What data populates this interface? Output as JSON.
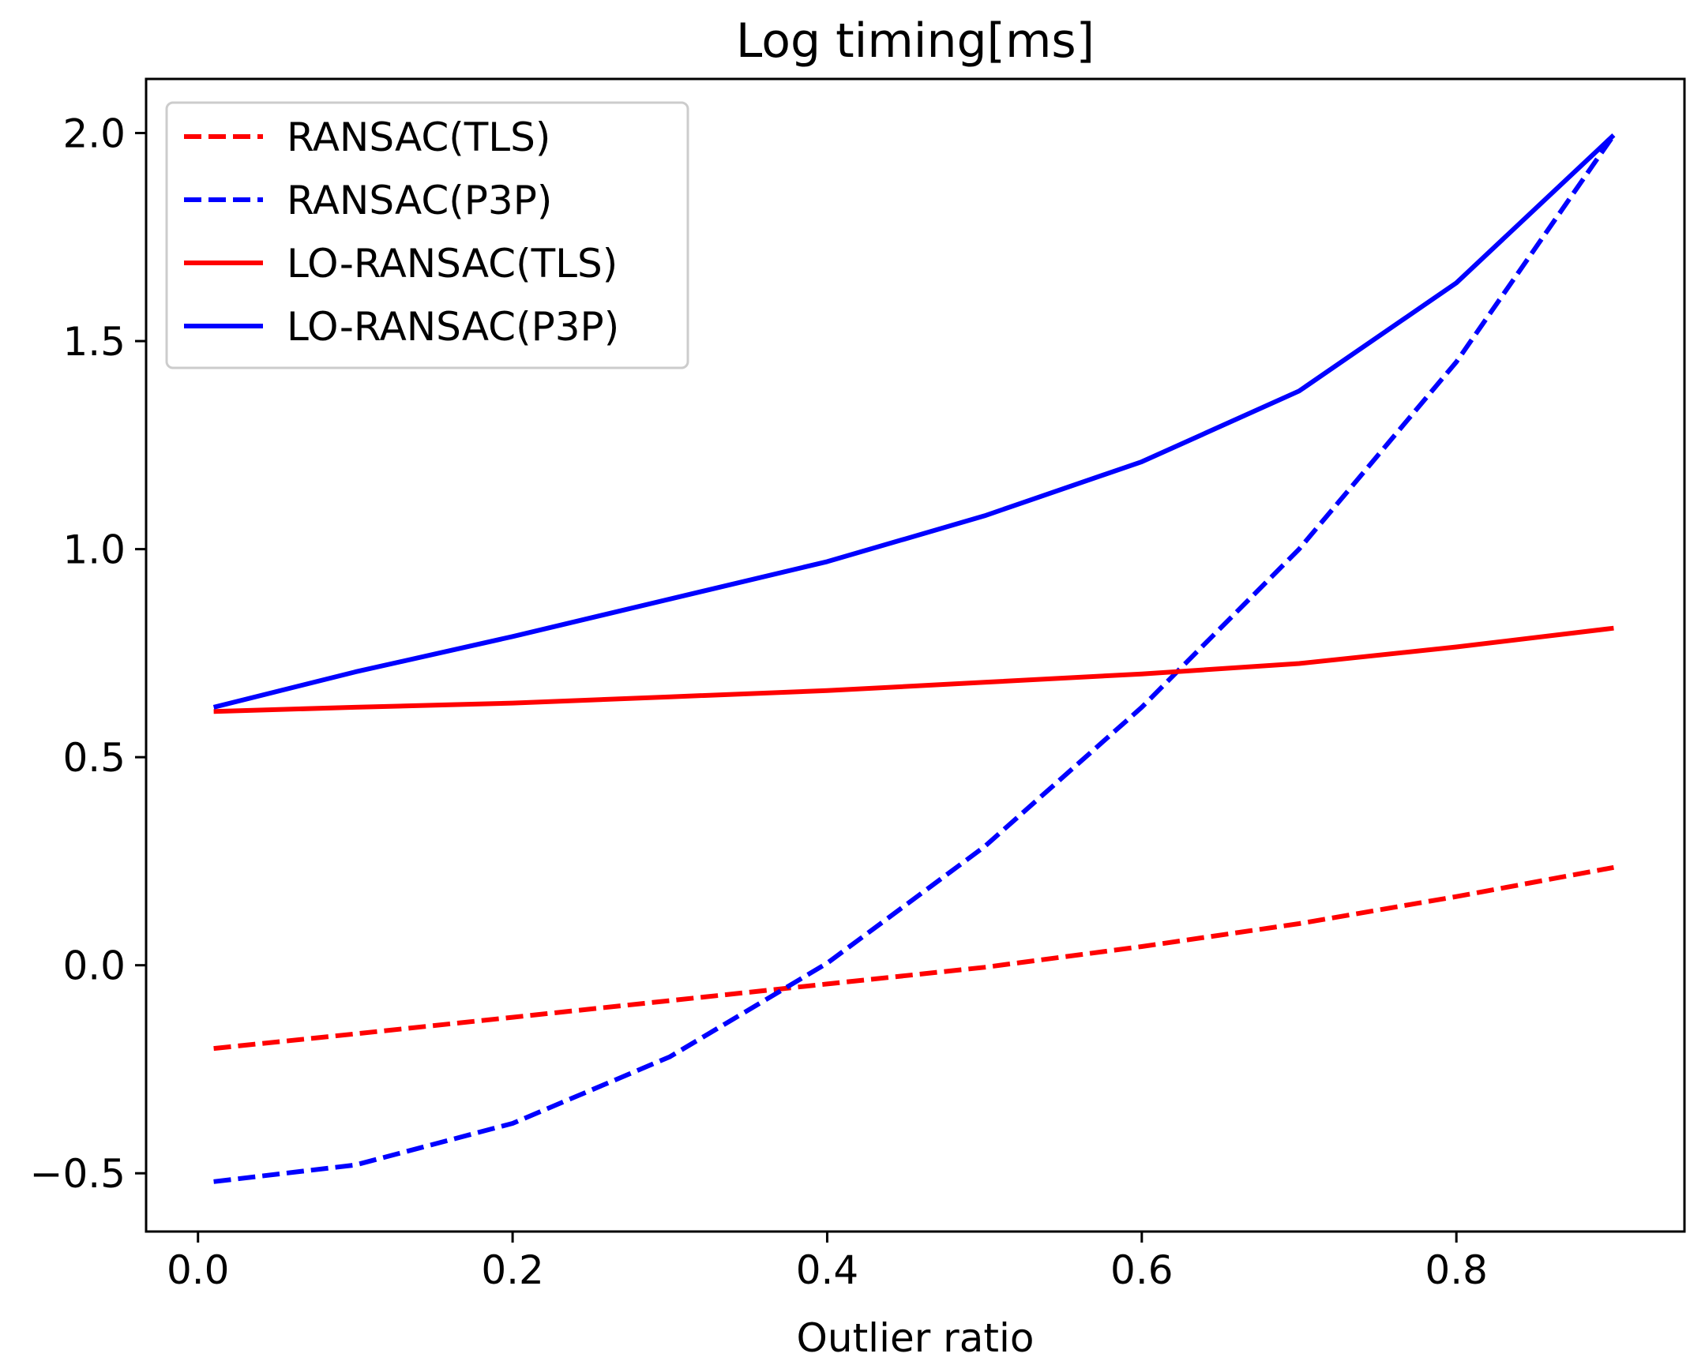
{
  "chart_data": {
    "type": "line",
    "title": "Log timing[ms]",
    "xlabel": "Outlier ratio",
    "ylabel": "",
    "xlim": [
      -0.033,
      0.945
    ],
    "ylim": [
      -0.64,
      2.13
    ],
    "xticks": [
      0.0,
      0.2,
      0.4,
      0.6,
      0.8
    ],
    "xtick_labels": [
      "0.0",
      "0.2",
      "0.4",
      "0.6",
      "0.8"
    ],
    "yticks": [
      -0.5,
      0.0,
      0.5,
      1.0,
      1.5,
      2.0
    ],
    "ytick_labels": [
      "−0.5",
      "0.0",
      "0.5",
      "1.0",
      "1.5",
      "2.0"
    ],
    "legend_position": "top-left",
    "x": [
      0.01,
      0.1,
      0.2,
      0.3,
      0.4,
      0.5,
      0.6,
      0.7,
      0.8,
      0.9
    ],
    "series": [
      {
        "name": "RANSAC(TLS)",
        "color": "#ff0000",
        "style": "dashed",
        "values": [
          -0.2,
          -0.165,
          -0.125,
          -0.085,
          -0.045,
          -0.005,
          0.045,
          0.1,
          0.165,
          0.235
        ]
      },
      {
        "name": "RANSAC(P3P)",
        "color": "#0000ff",
        "style": "dashed",
        "values": [
          -0.52,
          -0.48,
          -0.38,
          -0.22,
          0.005,
          0.285,
          0.62,
          1.0,
          1.45,
          1.995
        ]
      },
      {
        "name": "LO-RANSAC(TLS)",
        "color": "#ff0000",
        "style": "solid",
        "values": [
          0.61,
          0.62,
          0.63,
          0.645,
          0.66,
          0.68,
          0.7,
          0.725,
          0.765,
          0.81
        ]
      },
      {
        "name": "LO-RANSAC(P3P)",
        "color": "#0000ff",
        "style": "solid",
        "values": [
          0.62,
          0.705,
          0.79,
          0.88,
          0.97,
          1.08,
          1.21,
          1.38,
          1.64,
          1.995
        ]
      }
    ]
  }
}
